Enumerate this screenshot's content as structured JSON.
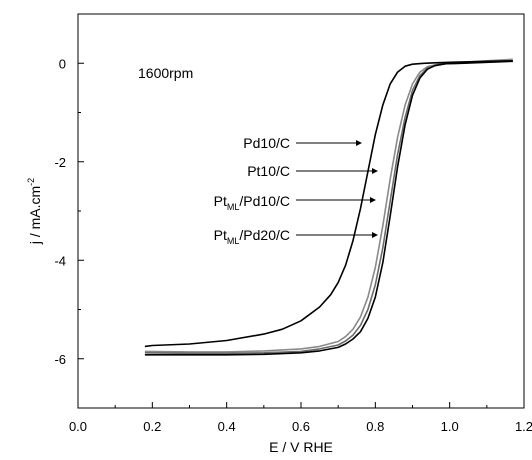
{
  "chart_data": {
    "type": "line",
    "title": "",
    "xlabel": "E / V  RHE",
    "ylabel": "j / mA.cm",
    "ylabel_sup": "-2",
    "xlim": [
      0.0,
      1.2
    ],
    "ylim": [
      -7,
      1
    ],
    "xticks": [
      0.0,
      0.2,
      0.4,
      0.6,
      0.8,
      1.0,
      1.2
    ],
    "xtick_labels": [
      "0.0",
      "0.2",
      "0.4",
      "0.6",
      "0.8",
      "1.0",
      "1.2"
    ],
    "yticks": [
      0,
      -2,
      -4,
      -6
    ],
    "ytick_labels": [
      "0",
      "-2",
      "-4",
      "-6"
    ],
    "grid": false,
    "annotation": "1600rpm",
    "series": [
      {
        "name": "Pd10/C",
        "color": "#000000",
        "x": [
          0.18,
          0.2,
          0.3,
          0.4,
          0.5,
          0.55,
          0.6,
          0.65,
          0.68,
          0.7,
          0.72,
          0.74,
          0.76,
          0.78,
          0.8,
          0.82,
          0.84,
          0.86,
          0.88,
          0.9,
          0.93,
          0.96,
          1.0,
          1.1,
          1.17
        ],
        "y": [
          -5.75,
          -5.73,
          -5.7,
          -5.63,
          -5.5,
          -5.4,
          -5.23,
          -4.95,
          -4.7,
          -4.45,
          -4.1,
          -3.6,
          -2.95,
          -2.2,
          -1.45,
          -0.85,
          -0.42,
          -0.18,
          -0.06,
          -0.02,
          0.0,
          0.01,
          0.02,
          0.04,
          0.05
        ]
      },
      {
        "name": "Pt10/C",
        "color": "#8a8a8a",
        "x": [
          0.18,
          0.3,
          0.4,
          0.5,
          0.6,
          0.65,
          0.7,
          0.72,
          0.74,
          0.76,
          0.78,
          0.8,
          0.82,
          0.84,
          0.86,
          0.88,
          0.9,
          0.92,
          0.94,
          0.97,
          1.0,
          1.1,
          1.17
        ],
        "y": [
          -5.85,
          -5.86,
          -5.86,
          -5.84,
          -5.8,
          -5.75,
          -5.65,
          -5.55,
          -5.4,
          -5.15,
          -4.75,
          -4.15,
          -3.3,
          -2.35,
          -1.5,
          -0.85,
          -0.42,
          -0.18,
          -0.07,
          -0.02,
          0.0,
          0.05,
          0.08
        ]
      },
      {
        "name": "PtML/Pd10/C",
        "name_parts": [
          "Pt",
          "ML",
          "/Pd10/C"
        ],
        "color": "#6a6a6a",
        "x": [
          0.18,
          0.3,
          0.4,
          0.5,
          0.6,
          0.65,
          0.7,
          0.72,
          0.74,
          0.76,
          0.78,
          0.8,
          0.82,
          0.84,
          0.86,
          0.88,
          0.9,
          0.92,
          0.94,
          0.96,
          0.99,
          1.02,
          1.1,
          1.17
        ],
        "y": [
          -5.88,
          -5.89,
          -5.89,
          -5.88,
          -5.85,
          -5.8,
          -5.72,
          -5.64,
          -5.52,
          -5.32,
          -5.0,
          -4.5,
          -3.75,
          -2.8,
          -1.85,
          -1.1,
          -0.55,
          -0.25,
          -0.1,
          -0.04,
          -0.01,
          0.0,
          0.03,
          0.05
        ]
      },
      {
        "name": "PtML/Pd20/C",
        "name_parts": [
          "Pt",
          "ML",
          "/Pd20/C"
        ],
        "color": "#000000",
        "x": [
          0.18,
          0.3,
          0.4,
          0.5,
          0.6,
          0.65,
          0.7,
          0.72,
          0.74,
          0.76,
          0.78,
          0.8,
          0.82,
          0.84,
          0.86,
          0.88,
          0.9,
          0.92,
          0.94,
          0.96,
          0.99,
          1.03,
          1.1,
          1.17
        ],
        "y": [
          -5.92,
          -5.92,
          -5.92,
          -5.91,
          -5.88,
          -5.84,
          -5.77,
          -5.7,
          -5.6,
          -5.45,
          -5.18,
          -4.75,
          -4.05,
          -3.1,
          -2.1,
          -1.25,
          -0.65,
          -0.3,
          -0.12,
          -0.05,
          -0.01,
          0.0,
          0.02,
          0.04
        ]
      }
    ]
  }
}
